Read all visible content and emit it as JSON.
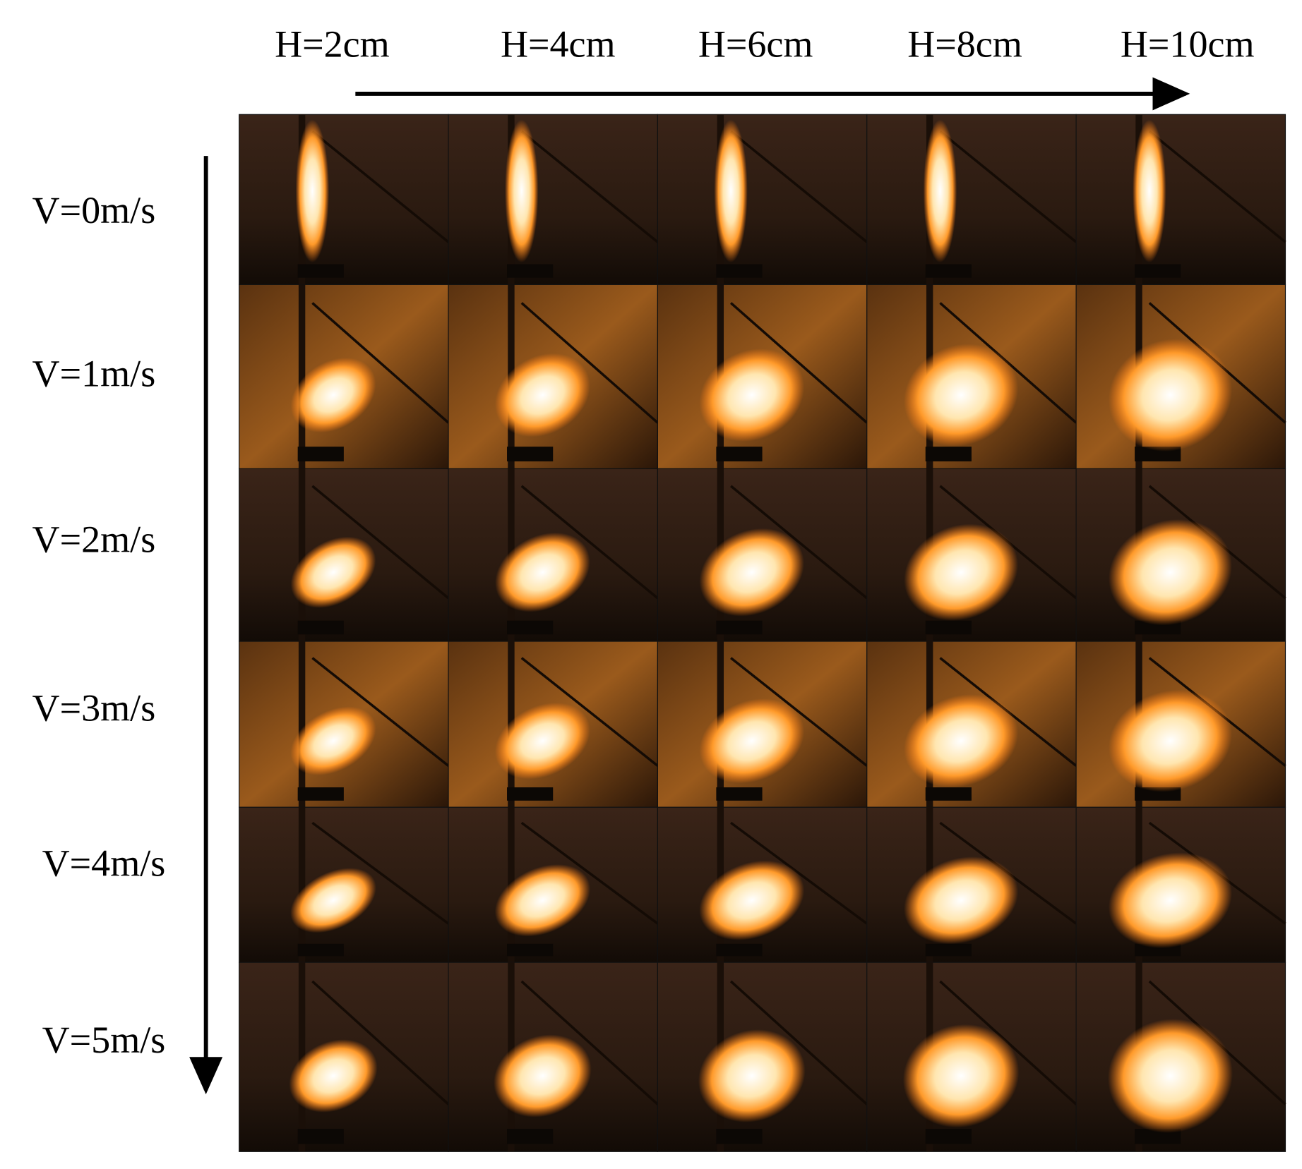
{
  "columns": [
    "H=2cm",
    "H=4cm",
    "H=6cm",
    "H=8cm",
    "H=10cm"
  ],
  "rows": [
    "V=0m/s",
    "V=1m/s",
    "V=2m/s",
    "V=3m/s",
    "V=4m/s",
    "V=5m/s"
  ]
}
